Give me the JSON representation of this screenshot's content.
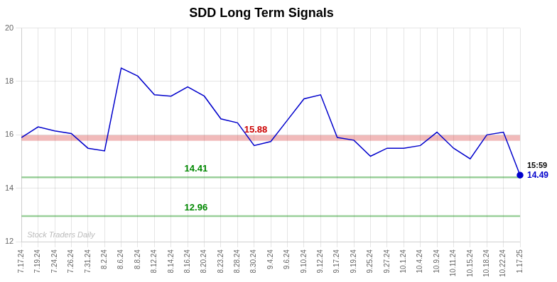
{
  "chart_data": {
    "type": "line",
    "title": "SDD Long Term Signals",
    "categories": [
      "7.17.24",
      "7.19.24",
      "7.24.24",
      "7.26.24",
      "7.31.24",
      "8.2.24",
      "8.6.24",
      "8.8.24",
      "8.12.24",
      "8.14.24",
      "8.16.24",
      "8.20.24",
      "8.23.24",
      "8.28.24",
      "8.30.24",
      "9.4.24",
      "9.6.24",
      "9.10.24",
      "9.12.24",
      "9.17.24",
      "9.19.24",
      "9.25.24",
      "9.27.24",
      "10.1.24",
      "10.4.24",
      "10.9.24",
      "10.11.24",
      "10.15.24",
      "10.18.24",
      "10.22.24",
      "1.17.25"
    ],
    "values": [
      15.9,
      16.3,
      16.15,
      16.05,
      15.5,
      15.4,
      18.5,
      18.2,
      17.5,
      17.45,
      17.8,
      17.45,
      16.6,
      16.45,
      15.6,
      15.75,
      16.55,
      17.35,
      17.5,
      15.9,
      15.8,
      15.2,
      15.5,
      15.5,
      15.6,
      16.1,
      15.5,
      15.1,
      16.0,
      16.1,
      14.49
    ],
    "color": "#0000cc",
    "hlines": [
      {
        "value": 15.88,
        "label": "15.88",
        "color": "#cc0000"
      },
      {
        "value": 14.41,
        "label": "14.41",
        "color": "#008800"
      },
      {
        "value": 12.96,
        "label": "12.96",
        "color": "#008800"
      }
    ],
    "end_labels": [
      "15:59",
      "14.49"
    ],
    "watermark": "Stock Traders Daily",
    "ylim": [
      12,
      20
    ],
    "yticks": [
      12,
      14,
      16,
      18,
      20
    ],
    "grid": true
  }
}
